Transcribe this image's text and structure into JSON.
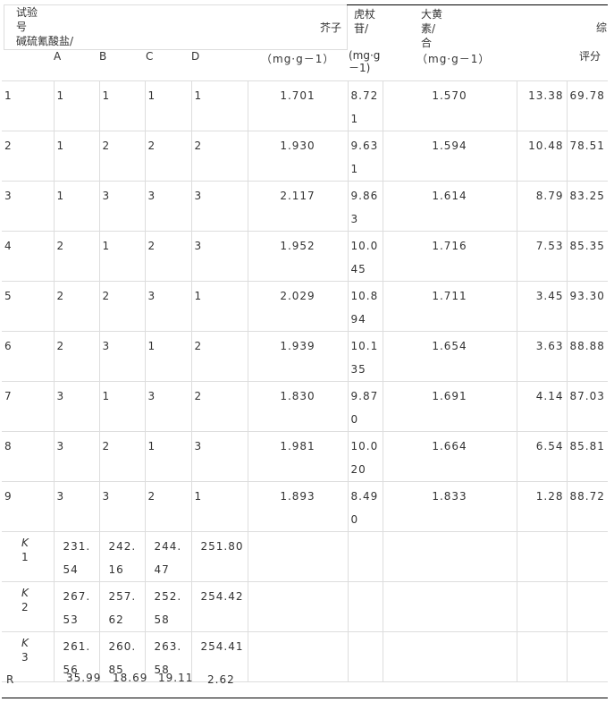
{
  "header": {
    "test_no": "试验号",
    "factor_title": "碱硫氰酸盐/",
    "factors": [
      "A",
      "B",
      "C",
      "D"
    ],
    "mustard": "芥子",
    "unit": "（mg·g－1）",
    "polydatin": "虎杖苷/",
    "polydatin_unit": "(mg·g－1)",
    "emodin": "大黄素/合",
    "emodin_unit": "（mg·g－1）",
    "score_top": "综",
    "score": "评分"
  },
  "rows": [
    {
      "no": "1",
      "A": "1",
      "B": "1",
      "C": "1",
      "D": "1",
      "mustard": "1.701",
      "polydatin": "8.721",
      "emodin": "1.570",
      "extra": "13.38",
      "score": "69.78"
    },
    {
      "no": "2",
      "A": "1",
      "B": "2",
      "C": "2",
      "D": "2",
      "mustard": "1.930",
      "polydatin": "9.631",
      "emodin": "1.594",
      "extra": "10.48",
      "score": "78.51"
    },
    {
      "no": "3",
      "A": "1",
      "B": "3",
      "C": "3",
      "D": "3",
      "mustard": "2.117",
      "polydatin": "9.863",
      "emodin": "1.614",
      "extra": "8.79",
      "score": "83.25"
    },
    {
      "no": "4",
      "A": "2",
      "B": "1",
      "C": "2",
      "D": "3",
      "mustard": "1.952",
      "polydatin": "10.045",
      "emodin": "1.716",
      "extra": "7.53",
      "score": "85.35"
    },
    {
      "no": "5",
      "A": "2",
      "B": "2",
      "C": "3",
      "D": "1",
      "mustard": "2.029",
      "polydatin": "10.894",
      "emodin": "1.711",
      "extra": "3.45",
      "score": "93.30"
    },
    {
      "no": "6",
      "A": "2",
      "B": "3",
      "C": "1",
      "D": "2",
      "mustard": "1.939",
      "polydatin": "10.135",
      "emodin": "1.654",
      "extra": "3.63",
      "score": "88.88"
    },
    {
      "no": "7",
      "A": "3",
      "B": "1",
      "C": "3",
      "D": "2",
      "mustard": "1.830",
      "polydatin": "9.870",
      "emodin": "1.691",
      "extra": "4.14",
      "score": "87.03"
    },
    {
      "no": "8",
      "A": "3",
      "B": "2",
      "C": "1",
      "D": "3",
      "mustard": "1.981",
      "polydatin": "10.020",
      "emodin": "1.664",
      "extra": "6.54",
      "score": "85.81"
    },
    {
      "no": "9",
      "A": "3",
      "B": "3",
      "C": "2",
      "D": "1",
      "mustard": "1.893",
      "polydatin": "8.490",
      "emodin": "1.833",
      "extra": "1.28",
      "score": "88.72"
    }
  ],
  "k_rows": [
    {
      "label": "K",
      "sub": "1",
      "A": "231.54",
      "B": "242.16",
      "C": "244.47",
      "D": "251.80"
    },
    {
      "label": "K",
      "sub": "2",
      "A": "267.53",
      "B": "257.62",
      "C": "252.58",
      "D": "254.42"
    },
    {
      "label": "K",
      "sub": "3",
      "A": "261.56",
      "B": "260.85",
      "C": "263.58",
      "D": "254.41"
    }
  ],
  "r_row": {
    "label": "R",
    "A": "35.99",
    "B": "18.69",
    "C": "19.11",
    "D": "2.62"
  }
}
